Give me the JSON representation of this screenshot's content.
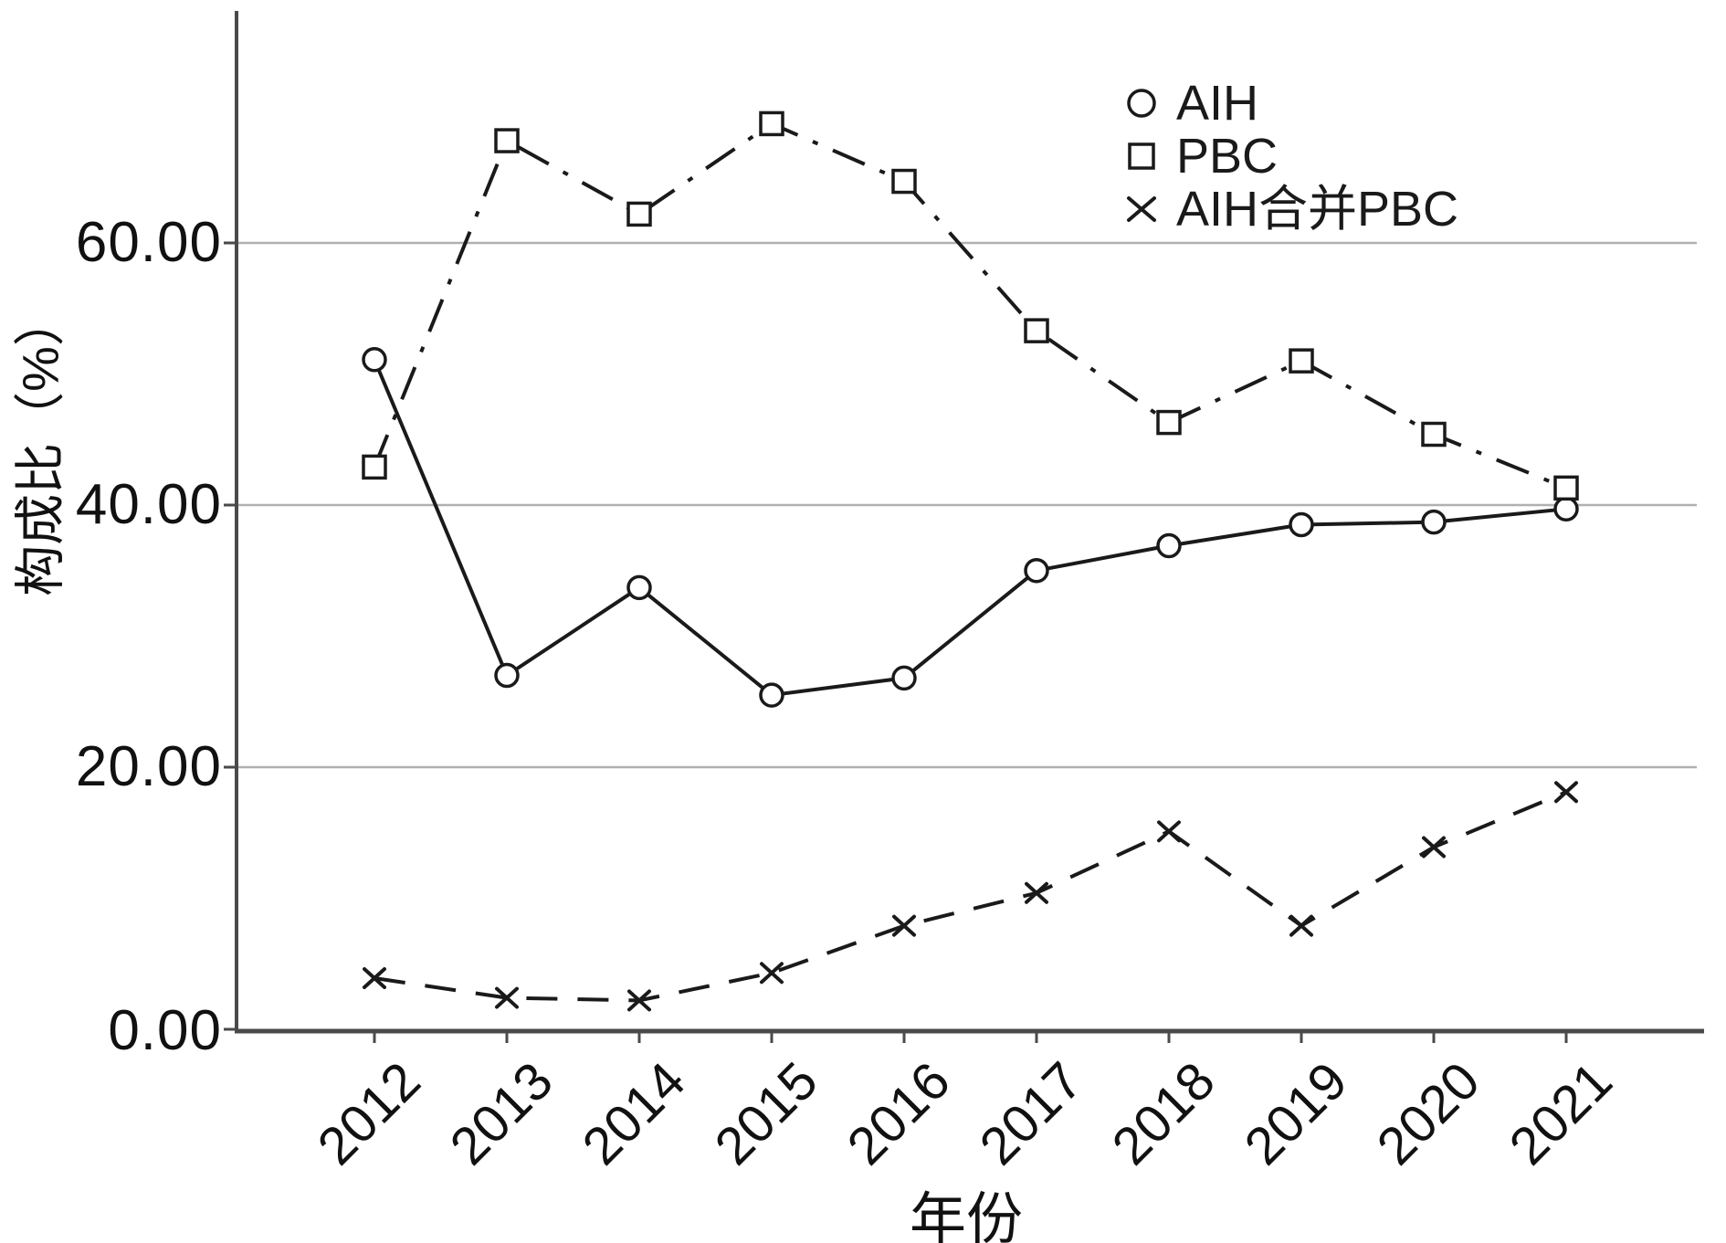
{
  "figure": {
    "y_axis": {
      "title": "构成比（%）",
      "ticks": [
        "0.00",
        "20.00",
        "40.00",
        "60.00"
      ],
      "tick_values": [
        0,
        20,
        40,
        60
      ]
    },
    "x_axis": {
      "title": "年份"
    },
    "colors": {
      "series": "#1a1a1a",
      "axis": "#4a4a4a",
      "grid": "#b0b0b0",
      "background": "#ffffff"
    }
  },
  "chart_data": {
    "type": "line",
    "title": "",
    "xlabel": "年份",
    "ylabel": "构成比（%）",
    "categories": [
      "2012",
      "2013",
      "2014",
      "2015",
      "2016",
      "2017",
      "2018",
      "2019",
      "2020",
      "2021"
    ],
    "ylim": [
      0,
      77.5
    ],
    "yticks": [
      0,
      20,
      40,
      60
    ],
    "grid": true,
    "legend_position": "top-right",
    "series": [
      {
        "name": "AIH",
        "marker": "circle",
        "line": "solid",
        "values": [
          51.1,
          27.0,
          33.7,
          25.5,
          26.8,
          35.0,
          36.9,
          38.5,
          38.7,
          39.7
        ]
      },
      {
        "name": "PBC",
        "marker": "square",
        "line": "dashdot",
        "values": [
          42.9,
          67.8,
          62.2,
          69.1,
          64.7,
          53.3,
          46.3,
          51.0,
          45.4,
          41.3
        ]
      },
      {
        "name": "AIH合并PBC",
        "marker": "x",
        "line": "dashed",
        "values": [
          3.9,
          2.4,
          2.2,
          4.3,
          7.9,
          10.4,
          15.1,
          7.9,
          13.9,
          18.1
        ]
      }
    ]
  }
}
